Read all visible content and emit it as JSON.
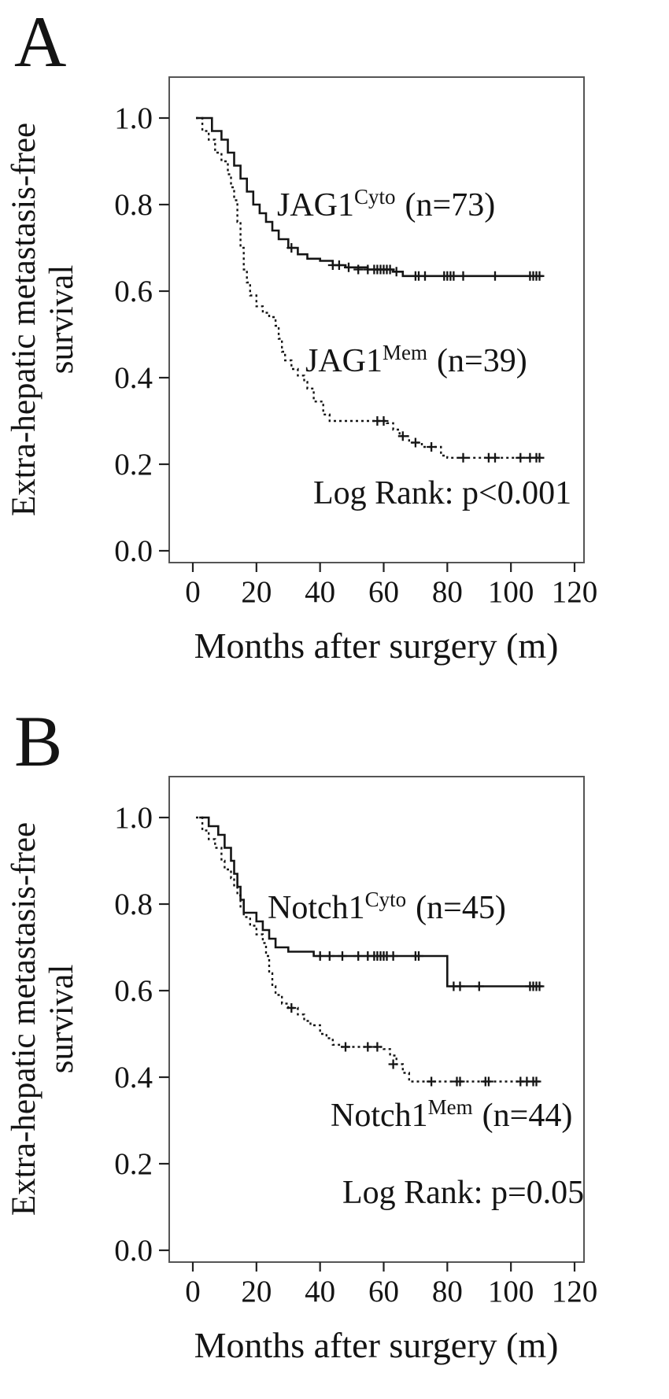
{
  "chart_data": [
    {
      "type": "line",
      "subtype": "kaplan-meier-step",
      "panel_label": "A",
      "xlabel": "Months after surgery (m)",
      "ylabel_lines": [
        "Extra-hepatic metastasis-free",
        "survival"
      ],
      "xlim": [
        -7,
        123
      ],
      "ylim": [
        -0.03,
        1.09
      ],
      "xticks": [
        "0",
        "20",
        "40",
        "60",
        "80",
        "100",
        "120"
      ],
      "yticks": [
        "0.0",
        "0.2",
        "0.4",
        "0.6",
        "0.8",
        "1.0"
      ],
      "grid": "off",
      "legend_position": "inline-labels",
      "annotation": "Log Rank: p<0.001",
      "series": [
        {
          "name": "jag1-cyto",
          "label_base": "JAG1",
          "label_sup": "Cyto",
          "label_rest": "(n=73)",
          "n": 73,
          "line_style": "solid",
          "x": [
            1,
            6,
            9,
            11,
            13,
            15,
            17,
            19,
            21,
            23,
            25,
            27,
            30,
            33,
            36,
            40,
            44,
            48,
            55,
            63,
            66
          ],
          "y": [
            1.0,
            0.97,
            0.95,
            0.92,
            0.89,
            0.86,
            0.83,
            0.8,
            0.78,
            0.76,
            0.74,
            0.72,
            0.7,
            0.685,
            0.675,
            0.67,
            0.66,
            0.655,
            0.65,
            0.645,
            0.635
          ],
          "x_end": 110,
          "censor_marks": [
            [
              31,
              0.7
            ],
            [
              44,
              0.66
            ],
            [
              46,
              0.66
            ],
            [
              49,
              0.655
            ],
            [
              52,
              0.65
            ],
            [
              55,
              0.65
            ],
            [
              57,
              0.65
            ],
            [
              58,
              0.65
            ],
            [
              59,
              0.65
            ],
            [
              60,
              0.65
            ],
            [
              61,
              0.65
            ],
            [
              62,
              0.65
            ],
            [
              64,
              0.645
            ],
            [
              70,
              0.635
            ],
            [
              71,
              0.635
            ],
            [
              73,
              0.635
            ],
            [
              79,
              0.635
            ],
            [
              80,
              0.635
            ],
            [
              81,
              0.635
            ],
            [
              82,
              0.635
            ],
            [
              85,
              0.635
            ],
            [
              95,
              0.635
            ],
            [
              106,
              0.635
            ],
            [
              107,
              0.635
            ],
            [
              108,
              0.635
            ],
            [
              109,
              0.635
            ]
          ]
        },
        {
          "name": "jag1-mem",
          "label_base": "JAG1",
          "label_sup": "Mem",
          "label_rest": "(n=39)",
          "n": 39,
          "line_style": "dashed",
          "x": [
            1,
            3,
            5,
            7,
            9,
            11,
            12,
            13,
            14,
            15,
            16,
            17,
            18,
            20,
            22,
            24,
            26,
            27,
            28,
            29,
            31,
            33,
            35,
            36,
            38,
            41,
            43,
            61,
            63,
            65,
            68,
            72,
            78,
            80
          ],
          "y": [
            1.0,
            0.97,
            0.95,
            0.92,
            0.9,
            0.87,
            0.84,
            0.81,
            0.76,
            0.7,
            0.65,
            0.62,
            0.59,
            0.565,
            0.55,
            0.54,
            0.52,
            0.49,
            0.46,
            0.44,
            0.42,
            0.405,
            0.39,
            0.375,
            0.345,
            0.315,
            0.3,
            0.295,
            0.28,
            0.265,
            0.25,
            0.24,
            0.22,
            0.215
          ],
          "x_end": 110,
          "censor_marks": [
            [
              58,
              0.3
            ],
            [
              60,
              0.3
            ],
            [
              66,
              0.265
            ],
            [
              70,
              0.25
            ],
            [
              75,
              0.24
            ],
            [
              85,
              0.215
            ],
            [
              93,
              0.215
            ],
            [
              95,
              0.215
            ],
            [
              103,
              0.215
            ],
            [
              106,
              0.215
            ],
            [
              108,
              0.215
            ],
            [
              109,
              0.215
            ]
          ]
        }
      ]
    },
    {
      "type": "line",
      "subtype": "kaplan-meier-step",
      "panel_label": "B",
      "xlabel": "Months after surgery (m)",
      "ylabel_lines": [
        "Extra-hepatic metastasis-free",
        "survival"
      ],
      "xlim": [
        -7,
        123
      ],
      "ylim": [
        -0.03,
        1.09
      ],
      "xticks": [
        "0",
        "20",
        "40",
        "60",
        "80",
        "100",
        "120"
      ],
      "yticks": [
        "0.0",
        "0.2",
        "0.4",
        "0.6",
        "0.8",
        "1.0"
      ],
      "grid": "off",
      "legend_position": "inline-labels",
      "annotation": "Log Rank: p=0.05",
      "series": [
        {
          "name": "notch1-cyto",
          "label_base": "Notch1",
          "label_sup": "Cyto",
          "label_rest": "(n=45)",
          "n": 45,
          "line_style": "solid",
          "x": [
            2,
            5,
            8,
            10,
            12,
            13,
            14,
            15,
            16,
            20,
            22,
            24,
            26,
            30,
            38,
            80
          ],
          "y": [
            1.0,
            0.98,
            0.96,
            0.93,
            0.9,
            0.87,
            0.84,
            0.81,
            0.78,
            0.76,
            0.74,
            0.72,
            0.7,
            0.69,
            0.68,
            0.61
          ],
          "x_end": 110,
          "censor_marks": [
            [
              40,
              0.68
            ],
            [
              43,
              0.68
            ],
            [
              47,
              0.68
            ],
            [
              52,
              0.68
            ],
            [
              55,
              0.68
            ],
            [
              57,
              0.68
            ],
            [
              58,
              0.68
            ],
            [
              59,
              0.68
            ],
            [
              60,
              0.68
            ],
            [
              61,
              0.68
            ],
            [
              63,
              0.68
            ],
            [
              70,
              0.68
            ],
            [
              71,
              0.68
            ],
            [
              82,
              0.61
            ],
            [
              84,
              0.61
            ],
            [
              90,
              0.61
            ],
            [
              106,
              0.61
            ],
            [
              107,
              0.61
            ],
            [
              108,
              0.61
            ],
            [
              109,
              0.61
            ]
          ]
        },
        {
          "name": "notch1-mem",
          "label_base": "Notch1",
          "label_sup": "Mem",
          "label_rest": "(n=44)",
          "n": 44,
          "line_style": "dashed",
          "x": [
            1,
            3,
            5,
            7,
            9,
            10,
            12,
            13,
            14,
            15,
            16,
            18,
            20,
            22,
            23,
            24,
            25,
            26,
            28,
            30,
            33,
            35,
            37,
            40,
            42,
            44,
            46,
            60,
            62,
            64,
            66,
            68
          ],
          "y": [
            1.0,
            0.97,
            0.95,
            0.93,
            0.9,
            0.88,
            0.86,
            0.84,
            0.82,
            0.79,
            0.77,
            0.75,
            0.73,
            0.71,
            0.68,
            0.64,
            0.61,
            0.59,
            0.57,
            0.56,
            0.545,
            0.53,
            0.52,
            0.5,
            0.49,
            0.475,
            0.47,
            0.465,
            0.45,
            0.43,
            0.41,
            0.39
          ],
          "x_end": 109,
          "censor_marks": [
            [
              31,
              0.56
            ],
            [
              48,
              0.47
            ],
            [
              55,
              0.47
            ],
            [
              58,
              0.47
            ],
            [
              63,
              0.43
            ],
            [
              75,
              0.39
            ],
            [
              83,
              0.39
            ],
            [
              84,
              0.39
            ],
            [
              92,
              0.39
            ],
            [
              93,
              0.39
            ],
            [
              103,
              0.39
            ],
            [
              105,
              0.39
            ],
            [
              107,
              0.39
            ],
            [
              108,
              0.39
            ]
          ]
        }
      ]
    }
  ]
}
